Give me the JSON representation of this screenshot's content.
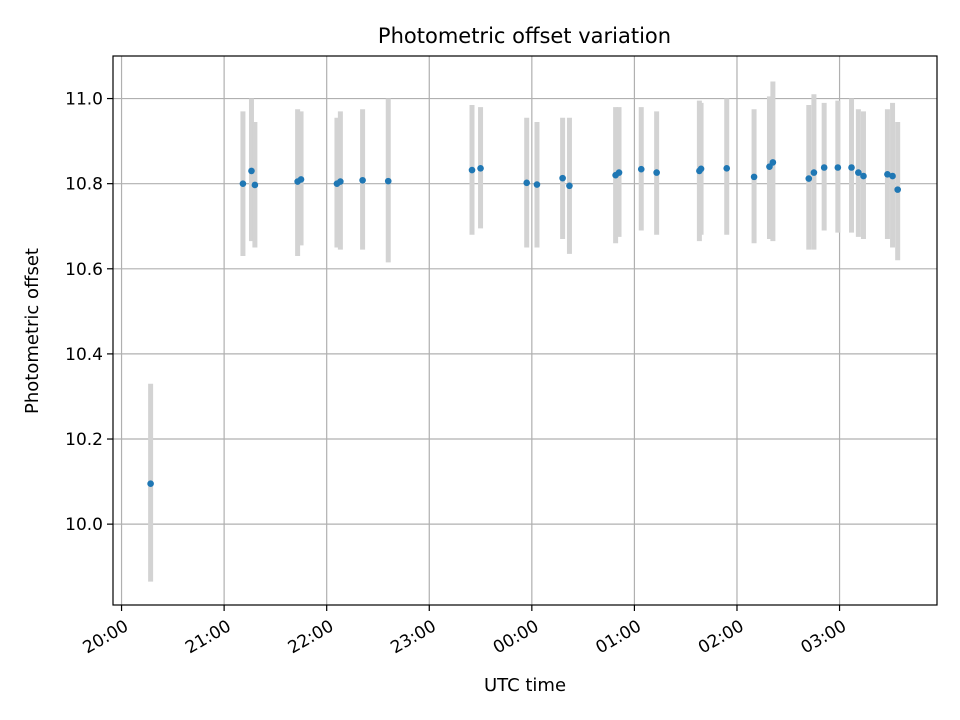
{
  "chart_data": {
    "type": "scatter",
    "title": "Photometric offset variation",
    "xlabel": "UTC time",
    "ylabel": "Photometric offset",
    "x_ticks": [
      "20:00",
      "21:00",
      "22:00",
      "23:00",
      "00:00",
      "01:00",
      "02:00",
      "03:00"
    ],
    "y_ticks": [
      "10.0",
      "10.2",
      "10.4",
      "10.6",
      "10.8",
      "11.0"
    ],
    "y_tick_values": [
      10.0,
      10.2,
      10.4,
      10.6,
      10.8,
      11.0
    ],
    "xlim": [
      "19:55",
      "03:57"
    ],
    "ylim": [
      9.81,
      11.1
    ],
    "grid": true,
    "colors": {
      "point": "#1f77b4",
      "errorbar": "#d3d3d3",
      "grid": "#b0b0b0"
    },
    "points": [
      {
        "x": "20:17",
        "y": 10.095,
        "lo": 9.865,
        "hi": 10.33
      },
      {
        "x": "21:11",
        "y": 10.8,
        "lo": 10.63,
        "hi": 10.97
      },
      {
        "x": "21:16",
        "y": 10.83,
        "lo": 10.665,
        "hi": 11.0
      },
      {
        "x": "21:18",
        "y": 10.797,
        "lo": 10.65,
        "hi": 10.945
      },
      {
        "x": "21:43",
        "y": 10.805,
        "lo": 10.63,
        "hi": 10.975
      },
      {
        "x": "21:45",
        "y": 10.81,
        "lo": 10.655,
        "hi": 10.97
      },
      {
        "x": "22:06",
        "y": 10.8,
        "lo": 10.65,
        "hi": 10.955
      },
      {
        "x": "22:08",
        "y": 10.805,
        "lo": 10.645,
        "hi": 10.97
      },
      {
        "x": "22:21",
        "y": 10.808,
        "lo": 10.645,
        "hi": 10.975
      },
      {
        "x": "22:36",
        "y": 10.806,
        "lo": 10.615,
        "hi": 11.0
      },
      {
        "x": "23:25",
        "y": 10.832,
        "lo": 10.68,
        "hi": 10.985
      },
      {
        "x": "23:30",
        "y": 10.836,
        "lo": 10.695,
        "hi": 10.98
      },
      {
        "x": "23:57",
        "y": 10.802,
        "lo": 10.65,
        "hi": 10.955
      },
      {
        "x": "00:03",
        "y": 10.798,
        "lo": 10.65,
        "hi": 10.945
      },
      {
        "x": "00:18",
        "y": 10.813,
        "lo": 10.67,
        "hi": 10.955
      },
      {
        "x": "00:22",
        "y": 10.795,
        "lo": 10.635,
        "hi": 10.955
      },
      {
        "x": "00:49",
        "y": 10.82,
        "lo": 10.66,
        "hi": 10.98
      },
      {
        "x": "00:51",
        "y": 10.826,
        "lo": 10.675,
        "hi": 10.98
      },
      {
        "x": "01:04",
        "y": 10.834,
        "lo": 10.69,
        "hi": 10.98
      },
      {
        "x": "01:13",
        "y": 10.826,
        "lo": 10.68,
        "hi": 10.97
      },
      {
        "x": "01:38",
        "y": 10.83,
        "lo": 10.665,
        "hi": 10.995
      },
      {
        "x": "01:39",
        "y": 10.835,
        "lo": 10.68,
        "hi": 10.99
      },
      {
        "x": "01:54",
        "y": 10.836,
        "lo": 10.68,
        "hi": 11.0
      },
      {
        "x": "02:10",
        "y": 10.816,
        "lo": 10.66,
        "hi": 10.975
      },
      {
        "x": "02:19",
        "y": 10.84,
        "lo": 10.67,
        "hi": 11.005
      },
      {
        "x": "02:21",
        "y": 10.85,
        "lo": 10.665,
        "hi": 11.04
      },
      {
        "x": "02:42",
        "y": 10.812,
        "lo": 10.645,
        "hi": 10.985
      },
      {
        "x": "02:45",
        "y": 10.826,
        "lo": 10.645,
        "hi": 11.01
      },
      {
        "x": "02:51",
        "y": 10.838,
        "lo": 10.69,
        "hi": 10.99
      },
      {
        "x": "02:59",
        "y": 10.838,
        "lo": 10.685,
        "hi": 10.995
      },
      {
        "x": "03:07",
        "y": 10.838,
        "lo": 10.685,
        "hi": 11.0
      },
      {
        "x": "03:11",
        "y": 10.826,
        "lo": 10.675,
        "hi": 10.975
      },
      {
        "x": "03:14",
        "y": 10.818,
        "lo": 10.67,
        "hi": 10.97
      },
      {
        "x": "03:28",
        "y": 10.822,
        "lo": 10.67,
        "hi": 10.975
      },
      {
        "x": "03:31",
        "y": 10.818,
        "lo": 10.65,
        "hi": 10.99
      },
      {
        "x": "03:34",
        "y": 10.786,
        "lo": 10.62,
        "hi": 10.945
      }
    ]
  }
}
